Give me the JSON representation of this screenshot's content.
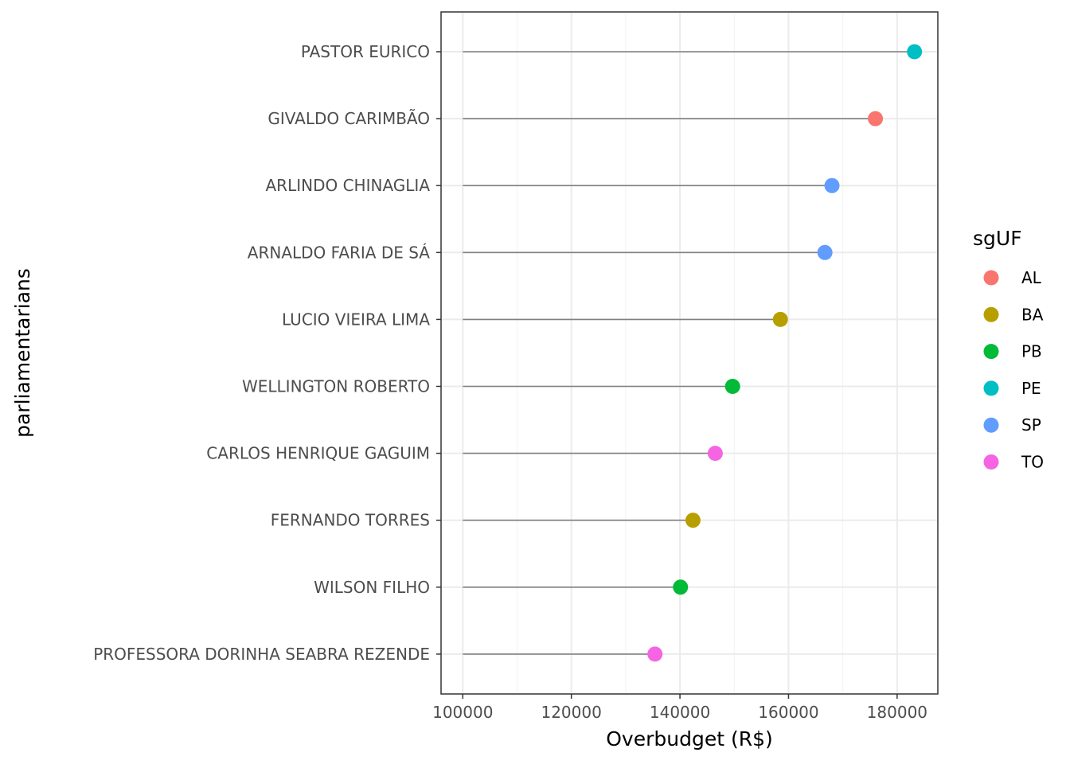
{
  "chart_data": {
    "type": "scatter",
    "subtype": "lollipop",
    "title": "",
    "xlabel": "Overbudget (R$)",
    "ylabel": "parliamentarians",
    "xlim": [
      96000,
      187500
    ],
    "x_ticks": [
      100000,
      120000,
      140000,
      160000,
      180000
    ],
    "x_tick_labels": [
      "100000",
      "120000",
      "140000",
      "160000",
      "180000"
    ],
    "segment_start": 100000,
    "grid": true,
    "legend": {
      "title": "sgUF",
      "position": "right"
    },
    "groups": [
      {
        "name": "AL",
        "color": "#F8766D"
      },
      {
        "name": "BA",
        "color": "#B79F00"
      },
      {
        "name": "PB",
        "color": "#00BA38"
      },
      {
        "name": "PE",
        "color": "#00BFC4"
      },
      {
        "name": "SP",
        "color": "#619CFF"
      },
      {
        "name": "TO",
        "color": "#F564E3"
      }
    ],
    "points": [
      {
        "name": "PASTOR EURICO",
        "value": 183200,
        "group": "PE"
      },
      {
        "name": "GIVALDO CARIMBÃO",
        "value": 176000,
        "group": "AL"
      },
      {
        "name": "ARLINDO CHINAGLIA",
        "value": 168000,
        "group": "SP"
      },
      {
        "name": "ARNALDO FARIA DE SÁ",
        "value": 166700,
        "group": "SP"
      },
      {
        "name": "LUCIO VIEIRA LIMA",
        "value": 158500,
        "group": "BA"
      },
      {
        "name": "WELLINGTON ROBERTO",
        "value": 149700,
        "group": "PB"
      },
      {
        "name": "CARLOS HENRIQUE GAGUIM",
        "value": 146500,
        "group": "TO"
      },
      {
        "name": "FERNANDO TORRES",
        "value": 142400,
        "group": "BA"
      },
      {
        "name": "WILSON FILHO",
        "value": 140100,
        "group": "PB"
      },
      {
        "name": "PROFESSORA DORINHA SEABRA REZENDE",
        "value": 135400,
        "group": "TO"
      }
    ]
  }
}
